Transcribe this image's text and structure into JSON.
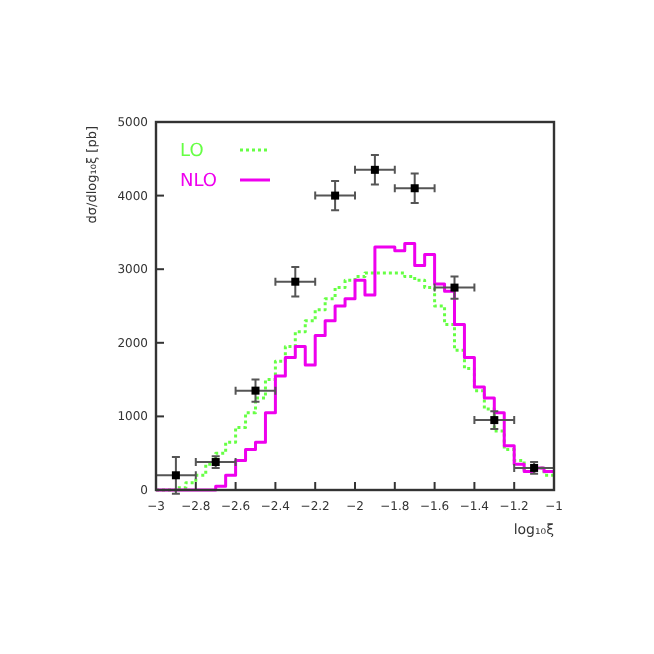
{
  "chart_data": {
    "type": "histogram",
    "xlabel": "log₁₀ξ",
    "ylabel": "dσ/dlog₁₀ξ [pb]",
    "xlim": [
      -3,
      -1
    ],
    "xticks": [
      -3,
      -2.8,
      -2.6,
      -2.4,
      -2.2,
      -2,
      -1.8,
      -1.6,
      -1.4,
      -1.2,
      -1
    ],
    "ylim": [
      0,
      5000
    ],
    "yticks": [
      0,
      1000,
      2000,
      3000,
      4000,
      5000
    ],
    "grid": false,
    "legend": "top left",
    "bins": [
      -3,
      -2.95,
      -2.9,
      -2.85,
      -2.8,
      -2.75,
      -2.7,
      -2.65,
      -2.6,
      -2.55,
      -2.5,
      -2.45,
      -2.4,
      -2.35,
      -2.3,
      -2.25,
      -2.2,
      -2.15,
      -2.1,
      -2.05,
      -2,
      -1.95,
      -1.9,
      -1.85,
      -1.8,
      -1.75,
      -1.7,
      -1.65,
      -1.6,
      -1.55,
      -1.5,
      -1.45,
      -1.4,
      -1.35,
      -1.3,
      -1.25,
      -1.2,
      -1.15,
      -1.1,
      -1.05,
      -1
    ],
    "series": [
      {
        "name": "LO",
        "color": "#66ff44",
        "line_style": "dotted",
        "values": [
          0,
          0,
          30,
          100,
          200,
          350,
          500,
          650,
          850,
          1050,
          1250,
          1500,
          1750,
          1950,
          2150,
          2300,
          2450,
          2600,
          2750,
          2850,
          2900,
          2950,
          2950,
          2950,
          2950,
          2900,
          2850,
          2750,
          2500,
          2250,
          1900,
          1650,
          1350,
          1100,
          800,
          550,
          400,
          250,
          300,
          200
        ]
      },
      {
        "name": "NLO",
        "color": "#ee00ee",
        "line_style": "solid",
        "values": [
          0,
          0,
          0,
          0,
          0,
          0,
          50,
          200,
          400,
          550,
          650,
          1050,
          1550,
          1800,
          1950,
          1700,
          2100,
          2300,
          2500,
          2600,
          2850,
          2650,
          3300,
          3300,
          3250,
          3350,
          3050,
          3200,
          2800,
          2700,
          2250,
          1800,
          1400,
          1250,
          1050,
          600,
          350,
          250,
          300,
          250
        ]
      },
      {
        "type": "scatter",
        "color": "#000000",
        "marker": "square",
        "x": [
          -2.9,
          -2.7,
          -2.5,
          -2.3,
          -2.1,
          -1.9,
          -1.7,
          -1.5,
          -1.3,
          -1.1
        ],
        "values": [
          200,
          380,
          1350,
          2830,
          4000,
          4350,
          4100,
          2750,
          950,
          300
        ],
        "errors": [
          250,
          80,
          150,
          200,
          200,
          200,
          200,
          150,
          120,
          80
        ],
        "xerrors": [
          0.1,
          0.1,
          0.1,
          0.1,
          0.1,
          0.1,
          0.1,
          0.1,
          0.1,
          0.1
        ]
      }
    ]
  }
}
